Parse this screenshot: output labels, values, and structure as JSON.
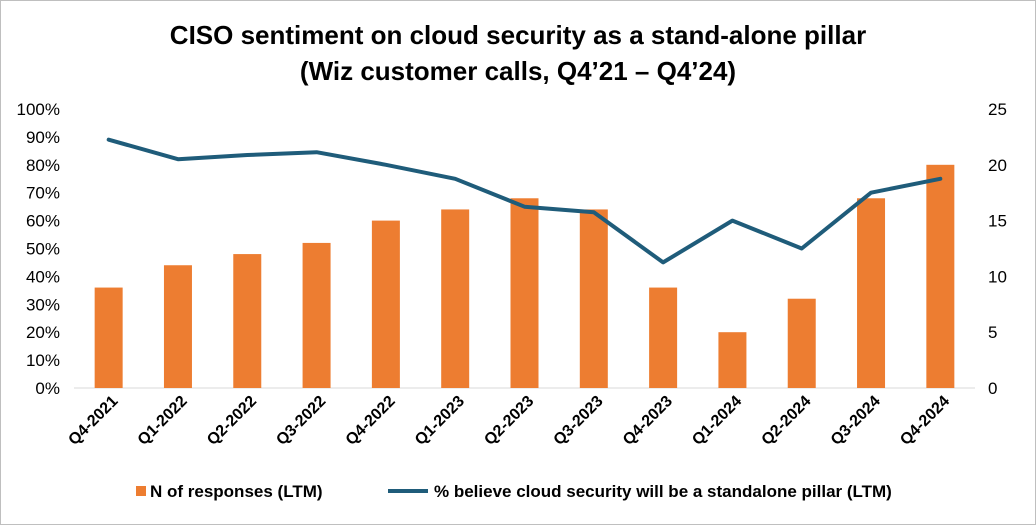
{
  "chart_data": {
    "type": "bar+line",
    "title": "CISO sentiment on cloud security as a stand-alone pillar",
    "subtitle": "(Wiz customer calls, Q4’21 – Q4’24)",
    "categories": [
      "Q4-2021",
      "Q1-2022",
      "Q2-2022",
      "Q3-2022",
      "Q4-2022",
      "Q1-2023",
      "Q2-2023",
      "Q3-2023",
      "Q4-2023",
      "Q1-2024",
      "Q2-2024",
      "Q3-2024",
      "Q4-2024"
    ],
    "series": [
      {
        "name": "N of responses (LTM)",
        "type": "bar",
        "axis": "right",
        "color": "#ED7D31",
        "values": [
          9,
          11,
          12,
          13,
          15,
          16,
          17,
          16,
          9,
          5,
          8,
          17,
          20
        ]
      },
      {
        "name": "% believe cloud security will be a standalone pillar (LTM)",
        "type": "line",
        "axis": "left",
        "color": "#1F5C7A",
        "values": [
          89,
          82,
          83.5,
          84.5,
          80,
          75,
          65,
          63,
          45,
          60,
          50,
          70,
          75
        ]
      }
    ],
    "y_left": {
      "min": 0,
      "max": 100,
      "step": 10,
      "ticks": [
        "0%",
        "10%",
        "20%",
        "30%",
        "40%",
        "50%",
        "60%",
        "70%",
        "80%",
        "90%",
        "100%"
      ]
    },
    "y_right": {
      "min": 0,
      "max": 25,
      "step": 5,
      "ticks": [
        "0",
        "5",
        "10",
        "15",
        "20",
        "25"
      ]
    },
    "grid": false,
    "legend_position": "bottom"
  }
}
